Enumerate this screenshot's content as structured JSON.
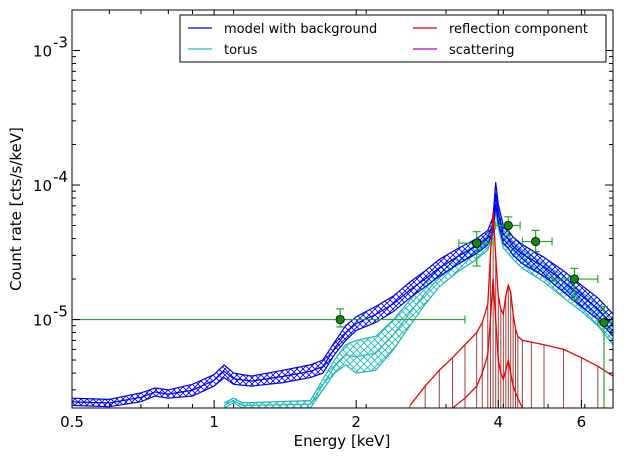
{
  "chart_data": {
    "type": "line",
    "xlabel": "Energy [keV]",
    "ylabel": "Count rate [cts/s/keV]",
    "x_scale": "log",
    "y_scale": "log",
    "xlim": [
      0.5,
      7.0
    ],
    "ylim": [
      2.2e-06,
      0.002
    ],
    "x_ticks": [
      {
        "value": 0.5,
        "label": "0.5"
      },
      {
        "value": 1,
        "label": "1"
      },
      {
        "value": 2,
        "label": "2"
      },
      {
        "value": 4,
        "label": "4"
      },
      {
        "value": 6,
        "label": "6"
      }
    ],
    "y_ticks": [
      {
        "value": 1e-05,
        "base": "10",
        "exp": "-5"
      },
      {
        "value": 0.0001,
        "base": "10",
        "exp": "-4"
      },
      {
        "value": 0.001,
        "base": "10",
        "exp": "-3"
      }
    ],
    "grid": false,
    "legend_position": "top-right",
    "legend": [
      {
        "label": "model with background",
        "color": "#0000ee"
      },
      {
        "label": "reflection component",
        "color": "#ee0000"
      },
      {
        "label": "torus",
        "color": "#1fb8b8"
      },
      {
        "label": "scattering",
        "color": "#bb00bb"
      }
    ],
    "series": [
      {
        "name": "model with background",
        "color": "#0000ee",
        "x": [
          0.5,
          0.6,
          0.7,
          0.75,
          0.8,
          0.9,
          1.0,
          1.05,
          1.1,
          1.2,
          1.4,
          1.6,
          1.7,
          1.8,
          1.9,
          2.0,
          2.2,
          2.4,
          2.6,
          2.8,
          3.0,
          3.3,
          3.6,
          3.8,
          3.9,
          3.95,
          4.0,
          4.1,
          4.2,
          4.3,
          4.5,
          5.0,
          5.5,
          6.0,
          6.5,
          7.0
        ],
        "y_low": [
          2.3e-06,
          2.25e-06,
          2.45e-06,
          2.7e-06,
          2.6e-06,
          2.7e-06,
          3.2e-06,
          3.7e-06,
          3.3e-06,
          3.2e-06,
          3.4e-06,
          3.7e-06,
          4e-06,
          5.5e-06,
          7e-06,
          8.3e-06,
          9.5e-06,
          1.15e-05,
          1.45e-05,
          1.75e-05,
          2.1e-05,
          2.6e-05,
          3.1e-05,
          3.6e-05,
          4.5e-05,
          7.2e-05,
          5.2e-05,
          3.7e-05,
          3.4e-05,
          3e-05,
          2.6e-05,
          2.1e-05,
          1.6e-05,
          1.25e-05,
          1e-05,
          7.5e-06
        ],
        "y_high": [
          2.6e-06,
          2.55e-06,
          2.85e-06,
          3.1e-06,
          3e-06,
          3.3e-06,
          3.9e-06,
          4.6e-06,
          4e-06,
          3.8e-06,
          4.2e-06,
          4.6e-06,
          5e-06,
          6.8e-06,
          9e-06,
          1.05e-05,
          1.25e-05,
          1.5e-05,
          1.9e-05,
          2.3e-05,
          2.8e-05,
          3.4e-05,
          4e-05,
          4.6e-05,
          5.8e-05,
          0.000105,
          7.2e-05,
          5e-05,
          4.6e-05,
          4.1e-05,
          3.6e-05,
          2.9e-05,
          2.3e-05,
          1.8e-05,
          1.45e-05,
          1.1e-05
        ]
      },
      {
        "name": "torus",
        "color": "#1fb8b8",
        "x": [
          1.05,
          1.1,
          1.15,
          1.6,
          1.7,
          1.8,
          1.9,
          2.0,
          2.2,
          2.4,
          2.6,
          2.8,
          3.0,
          3.3,
          3.6,
          3.8,
          3.9,
          3.95,
          4.0,
          4.1,
          4.2,
          4.3,
          4.5,
          5.0,
          5.5,
          6.0,
          6.5,
          7.0
        ],
        "y_low": [
          2.2e-06,
          2.4e-06,
          2.2e-06,
          2.2e-06,
          3e-06,
          4e-06,
          4.6e-06,
          4e-06,
          4.2e-06,
          6e-06,
          9e-06,
          1.3e-05,
          1.75e-05,
          2.3e-05,
          2.8e-05,
          3.3e-05,
          4.2e-05,
          6.5e-05,
          4.8e-05,
          3.4e-05,
          3.1e-05,
          2.8e-05,
          2.4e-05,
          1.9e-05,
          1.45e-05,
          1.15e-05,
          9e-06,
          6.5e-06
        ],
        "y_high": [
          2.4e-06,
          2.6e-06,
          2.4e-06,
          2.5e-06,
          3.6e-06,
          5e-06,
          6.5e-06,
          7e-06,
          7.5e-06,
          1e-05,
          1.4e-05,
          1.9e-05,
          2.4e-05,
          3e-05,
          3.6e-05,
          4.2e-05,
          5.3e-05,
          9e-05,
          6.5e-05,
          4.6e-05,
          4.2e-05,
          3.8e-05,
          3.3e-05,
          2.6e-05,
          2.1e-05,
          1.6e-05,
          1.3e-05,
          9.5e-06
        ]
      },
      {
        "name": "reflection component",
        "color": "#ee0000",
        "x": [
          2.6,
          2.8,
          3.0,
          3.2,
          3.4,
          3.6,
          3.7,
          3.8,
          3.85,
          3.9,
          3.95,
          4.0,
          4.05,
          4.1,
          4.15,
          4.2,
          4.25,
          4.3,
          4.35,
          4.4,
          4.5,
          4.7,
          5.0,
          5.5,
          6.0,
          6.5,
          7.0
        ],
        "y": [
          2.3e-06,
          3.2e-06,
          4.2e-06,
          5.2e-06,
          6.5e-06,
          8e-06,
          9.5e-06,
          1.3e-05,
          3e-05,
          6.3e-05,
          3e-05,
          1.5e-05,
          1.2e-05,
          1.1e-05,
          1.5e-05,
          1.8e-05,
          1.6e-05,
          1.1e-05,
          8.5e-06,
          7.5e-06,
          7e-06,
          6.8e-06,
          6.5e-06,
          6e-06,
          5.2e-06,
          4.5e-06,
          3.8e-06
        ]
      },
      {
        "name": "reflection (lower)",
        "color": "#ee0000",
        "x": [
          3.2,
          3.4,
          3.6,
          3.7,
          3.8,
          3.85,
          3.9,
          3.95,
          4.0,
          4.05,
          4.1,
          4.15,
          4.2,
          4.3,
          4.4,
          4.5
        ],
        "y": [
          2.2e-06,
          2.6e-06,
          3.2e-06,
          4e-06,
          5.5e-06,
          1e-05,
          2e-05,
          1e-05,
          5e-06,
          4e-06,
          3.6e-06,
          4.2e-06,
          5e-06,
          3.2e-06,
          2.6e-06,
          2.2e-06
        ]
      }
    ],
    "data_points": [
      {
        "x": 1.85,
        "xerr_low": 0.5,
        "xerr_high": 3.4,
        "y": 1e-05,
        "y_low": 8.8e-06,
        "y_high": 1.2e-05
      },
      {
        "x": 3.6,
        "xerr_low": 3.3,
        "xerr_high": 3.9,
        "y": 3.7e-05,
        "y_low": 2.5e-05,
        "y_high": 4.5e-05
      },
      {
        "x": 4.2,
        "xerr_low": 3.95,
        "xerr_high": 4.45,
        "y": 5e-05,
        "y_low": 4.2e-05,
        "y_high": 5.8e-05
      },
      {
        "x": 4.8,
        "xerr_low": 4.5,
        "xerr_high": 5.2,
        "y": 3.8e-05,
        "y_low": 3.2e-05,
        "y_high": 4.6e-05
      },
      {
        "x": 5.8,
        "xerr_low": 5.2,
        "xerr_high": 6.5,
        "y": 2e-05,
        "y_low": 1.4e-05,
        "y_high": 2.4e-05
      },
      {
        "x": 6.7,
        "xerr_low": 6.5,
        "xerr_high": 7.0,
        "y": 9.5e-06,
        "y_low": 2.2e-06,
        "y_high": 1.25e-05
      }
    ]
  }
}
